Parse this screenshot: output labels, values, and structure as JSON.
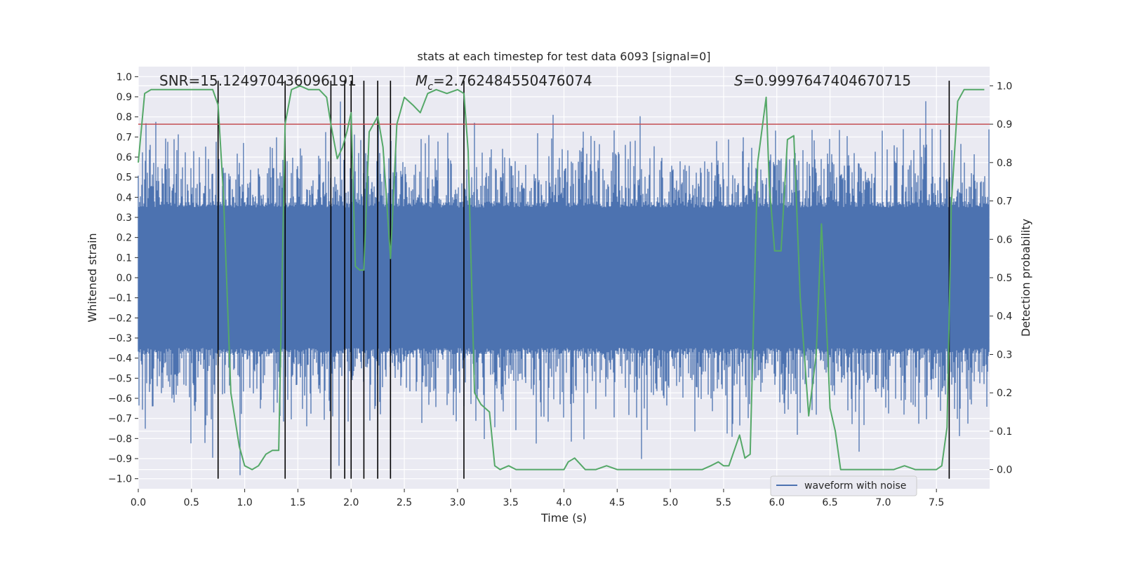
{
  "chart_data": {
    "type": "line",
    "title": "stats at each timestep for test data 6093 [signal=0]",
    "xlabel": "Time (s)",
    "ylabel_left": "Whitened strain",
    "ylabel_right": "Detection probability",
    "xlim": [
      0.0,
      8.0
    ],
    "ylim_left": [
      -1.05,
      1.05
    ],
    "ylim_right": [
      -0.05,
      1.05
    ],
    "x_ticks": [
      "0.0",
      "0.5",
      "1.0",
      "1.5",
      "2.0",
      "2.5",
      "3.0",
      "3.5",
      "4.0",
      "4.5",
      "5.0",
      "5.5",
      "6.0",
      "6.5",
      "7.0",
      "7.5"
    ],
    "y_left_ticks": [
      "1.0",
      "0.9",
      "0.8",
      "0.7",
      "0.6",
      "0.5",
      "0.4",
      "0.3",
      "0.2",
      "0.1",
      "0.0",
      "-0.1",
      "-0.2",
      "-0.3",
      "-0.4",
      "-0.5",
      "-0.6",
      "-0.7",
      "-0.8",
      "-0.9",
      "-1.0"
    ],
    "y_right_ticks": [
      "1.0",
      "0.9",
      "0.8",
      "0.7",
      "0.6",
      "0.5",
      "0.4",
      "0.3",
      "0.2",
      "0.1",
      "0.0"
    ],
    "grid": true,
    "colors": {
      "background": "#eaeaf2",
      "grid": "#ffffff",
      "waveform": "#4c72b0",
      "probability": "#55a868",
      "threshold": "#c44e52",
      "trigger": "#000000"
    },
    "annotations": {
      "snr": "SNR=15.124970436096191",
      "mc": "=2.762484550476074",
      "mc_symbol": "M",
      "mc_subscript": "c",
      "s_symbol": "S",
      "s_value": "=0.9997647404670715"
    },
    "threshold_probability": 0.9,
    "trigger_times": [
      0.75,
      1.38,
      1.81,
      1.94,
      2.0,
      2.12,
      2.25,
      2.37,
      3.06,
      7.62
    ],
    "waveform": {
      "name": "waveform with noise",
      "duration": 8.0,
      "envelope": 0.38,
      "spike_max": 0.97,
      "spike_min": -1.0
    },
    "probability_series": {
      "name": "Detection probability",
      "x": [
        0.0,
        0.06,
        0.12,
        0.2,
        0.3,
        0.4,
        0.5,
        0.6,
        0.7,
        0.75,
        0.8,
        0.87,
        0.95,
        1.0,
        1.07,
        1.13,
        1.2,
        1.26,
        1.32,
        1.38,
        1.44,
        1.52,
        1.6,
        1.7,
        1.77,
        1.81,
        1.87,
        1.92,
        1.96,
        2.0,
        2.04,
        2.08,
        2.12,
        2.17,
        2.25,
        2.3,
        2.37,
        2.43,
        2.5,
        2.58,
        2.65,
        2.72,
        2.8,
        2.9,
        3.0,
        3.06,
        3.1,
        3.16,
        3.22,
        3.3,
        3.35,
        3.4,
        3.48,
        3.55,
        3.65,
        3.75,
        3.85,
        3.95,
        4.0,
        4.04,
        4.1,
        4.2,
        4.3,
        4.4,
        4.5,
        4.6,
        4.8,
        5.0,
        5.2,
        5.3,
        5.38,
        5.45,
        5.5,
        5.55,
        5.6,
        5.65,
        5.7,
        5.75,
        5.82,
        5.9,
        5.93,
        5.98,
        6.04,
        6.1,
        6.16,
        6.22,
        6.3,
        6.37,
        6.42,
        6.48,
        6.5,
        6.55,
        6.6,
        6.7,
        6.9,
        7.1,
        7.2,
        7.3,
        7.4,
        7.5,
        7.55,
        7.6,
        7.64,
        7.7,
        7.76,
        7.85,
        7.95
      ],
      "y": [
        0.8,
        0.98,
        0.99,
        0.99,
        0.99,
        0.99,
        0.99,
        0.99,
        0.99,
        0.95,
        0.72,
        0.2,
        0.06,
        0.01,
        0.0,
        0.01,
        0.04,
        0.05,
        0.05,
        0.9,
        0.99,
        1.0,
        0.99,
        0.99,
        0.97,
        0.9,
        0.81,
        0.84,
        0.88,
        0.93,
        0.53,
        0.52,
        0.52,
        0.88,
        0.92,
        0.84,
        0.55,
        0.9,
        0.97,
        0.95,
        0.93,
        0.98,
        0.99,
        0.98,
        0.99,
        0.98,
        0.83,
        0.2,
        0.17,
        0.15,
        0.01,
        0.0,
        0.01,
        0.0,
        0.0,
        0.0,
        0.0,
        0.0,
        0.0,
        0.02,
        0.03,
        0.0,
        0.0,
        0.01,
        0.0,
        0.0,
        0.0,
        0.0,
        0.0,
        0.0,
        0.01,
        0.02,
        0.01,
        0.01,
        0.05,
        0.09,
        0.03,
        0.04,
        0.8,
        0.97,
        0.74,
        0.57,
        0.57,
        0.86,
        0.87,
        0.45,
        0.14,
        0.3,
        0.64,
        0.3,
        0.16,
        0.1,
        0.0,
        0.0,
        0.0,
        0.0,
        0.01,
        0.0,
        0.0,
        0.0,
        0.01,
        0.11,
        0.69,
        0.96,
        0.99,
        0.99,
        0.99
      ]
    },
    "legend": {
      "entries": [
        "waveform with noise"
      ],
      "placement": "lower-right"
    }
  }
}
